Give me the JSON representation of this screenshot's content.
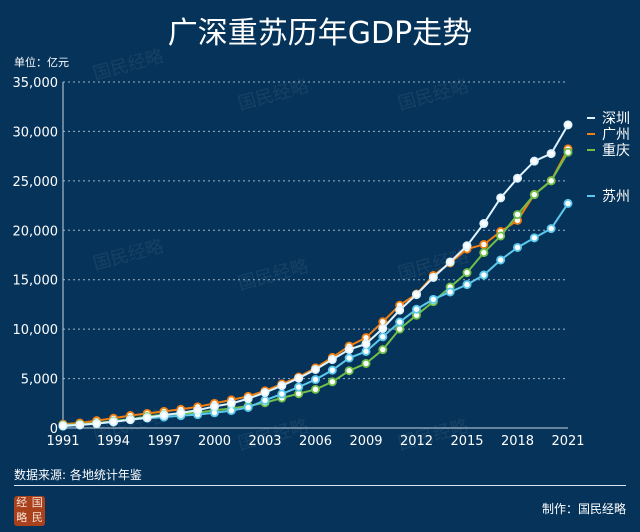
{
  "chart_data": {
    "type": "line",
    "title": "广深重苏历年GDP走势",
    "ylabel": "单位：亿元",
    "xlabel": "",
    "ylim": [
      0,
      35000
    ],
    "yticks": [
      "0",
      "5,000",
      "10,000",
      "15,000",
      "20,000",
      "25,000",
      "30,000",
      "35,000"
    ],
    "ytick_values": [
      0,
      5000,
      10000,
      15000,
      20000,
      25000,
      30000,
      35000
    ],
    "xticks": [
      "1991",
      "1994",
      "1997",
      "2000",
      "2003",
      "2006",
      "2009",
      "2012",
      "2015",
      "2018",
      "2021"
    ],
    "grid": true,
    "legend_position": "right",
    "x": [
      1991,
      1992,
      1993,
      1994,
      1995,
      1996,
      1997,
      1998,
      1999,
      2000,
      2001,
      2002,
      2003,
      2004,
      2005,
      2006,
      2007,
      2008,
      2009,
      2010,
      2011,
      2012,
      2013,
      2014,
      2015,
      2016,
      2017,
      2018,
      2019,
      2020,
      2021
    ],
    "series": [
      {
        "name": "深圳",
        "color": "#dff3ff",
        "values": [
          237,
          317,
          453,
          635,
          842,
          1048,
          1297,
          1535,
          1804,
          2187,
          2482,
          2969,
          3586,
          4282,
          5036,
          5920,
          6925,
          7941,
          8514,
          10069,
          11922,
          13496,
          15235,
          16795,
          18436,
          20685,
          23280,
          25266,
          26992,
          27760,
          30665
        ]
      },
      {
        "name": "广州",
        "color": "#f07f12",
        "values": [
          387,
          510,
          745,
          985,
          1259,
          1468,
          1679,
          1893,
          2139,
          2492,
          2842,
          3204,
          3758,
          4451,
          5154,
          6081,
          7140,
          8287,
          9138,
          10748,
          12423,
          13551,
          15420,
          16707,
          18100,
          18560,
          19871,
          21002,
          23629,
          25019,
          28232
        ]
      },
      {
        "name": "重庆",
        "color": "#6fbf4a",
        "values": [
          300,
          370,
          500,
          700,
          900,
          1150,
          1350,
          1450,
          1550,
          1791,
          1976,
          2232,
          2556,
          3034,
          3468,
          3907,
          4676,
          5794,
          6530,
          7926,
          10011,
          11410,
          12783,
          14263,
          15717,
          17741,
          19425,
          21589,
          23606,
          25003,
          27894
        ]
      },
      {
        "name": "苏州",
        "color": "#5cc8ec",
        "values": [
          180,
          300,
          450,
          600,
          850,
          1000,
          1100,
          1250,
          1350,
          1541,
          1760,
          2080,
          2802,
          3450,
          4138,
          4900,
          5850,
          7078,
          7740,
          9229,
          10717,
          12012,
          13016,
          13761,
          14504,
          15475,
          17000,
          18263,
          19236,
          20171,
          22718
        ]
      }
    ]
  },
  "source": "数据来源: 各地统计年鉴",
  "credit": "制作：国民经略",
  "watermark": "国民经略",
  "logo_text": [
    "经",
    "国",
    "略",
    "民"
  ],
  "colors": {
    "background": "#05335a",
    "grid": "#9fb4c8"
  }
}
